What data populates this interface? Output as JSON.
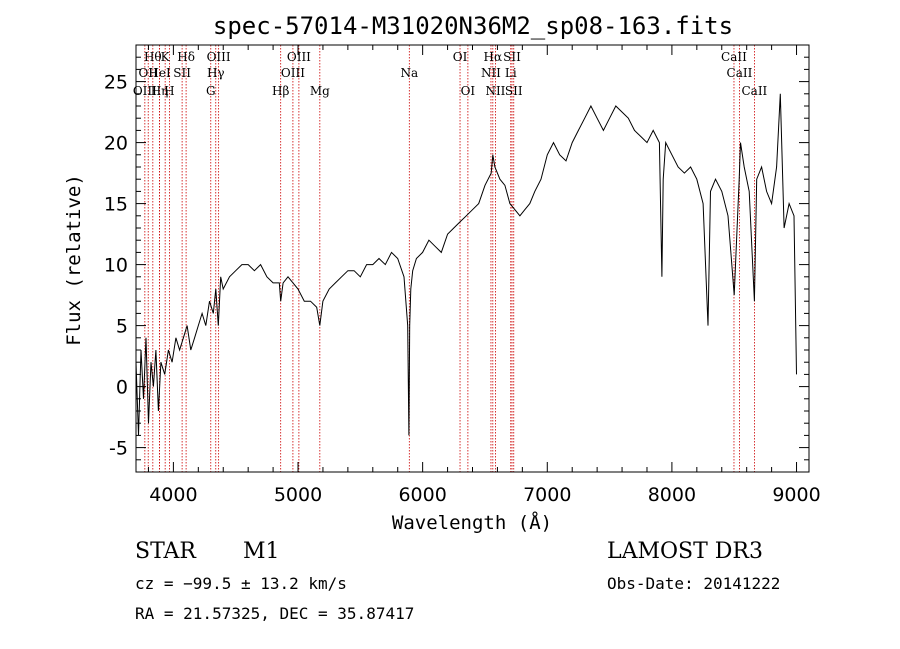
{
  "chart_data": {
    "type": "line",
    "title": "spec-57014-M31020N36M2_sp08-163.fits",
    "xlabel": "Wavelength (Å)",
    "ylabel": "Flux (relative)",
    "xlim": [
      3700,
      9100
    ],
    "ylim": [
      -7,
      28
    ],
    "xticks": [
      4000,
      5000,
      6000,
      7000,
      8000,
      9000
    ],
    "yticks": [
      -5,
      0,
      5,
      10,
      15,
      20,
      25
    ],
    "grid": false,
    "series": [
      {
        "x": [
          3700,
          3720,
          3740,
          3760,
          3780,
          3800,
          3820,
          3840,
          3860,
          3880,
          3900,
          3930,
          3960,
          3990,
          4020,
          4050,
          4080,
          4110,
          4140,
          4170,
          4200,
          4230,
          4260,
          4290,
          4320,
          4340,
          4360,
          4380,
          4400,
          4450,
          4500,
          4550,
          4600,
          4650,
          4700,
          4750,
          4800,
          4850,
          4861,
          4880,
          4920,
          4960,
          5000,
          5050,
          5100,
          5150,
          5175,
          5200,
          5250,
          5300,
          5350,
          5400,
          5450,
          5500,
          5550,
          5600,
          5650,
          5700,
          5750,
          5800,
          5850,
          5880,
          5890,
          5896,
          5905,
          5920,
          5950,
          6000,
          6050,
          6100,
          6150,
          6200,
          6250,
          6300,
          6350,
          6400,
          6450,
          6500,
          6550,
          6563,
          6580,
          6620,
          6660,
          6700,
          6740,
          6780,
          6820,
          6860,
          6900,
          6950,
          7000,
          7050,
          7100,
          7150,
          7200,
          7250,
          7300,
          7350,
          7400,
          7450,
          7500,
          7550,
          7600,
          7650,
          7700,
          7750,
          7800,
          7850,
          7900,
          7920,
          7930,
          7950,
          8000,
          8050,
          8100,
          8150,
          8200,
          8250,
          8290,
          8310,
          8350,
          8400,
          8450,
          8500,
          8540,
          8550,
          8580,
          8620,
          8662,
          8680,
          8720,
          8760,
          8800,
          8840,
          8870,
          8900,
          8940,
          8980,
          9000
        ],
        "y": [
          2,
          -4,
          3,
          -1,
          4,
          -3,
          2,
          0,
          3,
          -2,
          2,
          1,
          3,
          2,
          4,
          3,
          4,
          5,
          3,
          4,
          5,
          6,
          5,
          7,
          6,
          8,
          5,
          9,
          8,
          9,
          9.5,
          10,
          10,
          9.5,
          10,
          9,
          8.5,
          8.5,
          7,
          8.5,
          9,
          8.5,
          8,
          7,
          7,
          6.5,
          5,
          7,
          8,
          8.5,
          9,
          9.5,
          9.5,
          9,
          10,
          10,
          10.5,
          10,
          11,
          10.5,
          9,
          5,
          -4,
          5,
          8,
          9.5,
          10.5,
          11,
          12,
          11.5,
          11,
          12.5,
          13,
          13.5,
          14,
          14.5,
          15,
          16.5,
          17.5,
          19,
          18,
          17,
          16.5,
          15,
          14.5,
          14,
          14.5,
          15,
          16,
          17,
          19,
          20,
          19,
          18.5,
          20,
          21,
          22,
          23,
          22,
          21,
          22,
          23,
          22.5,
          22,
          21,
          20.5,
          20,
          21,
          20,
          9,
          17,
          20,
          19,
          18,
          17.5,
          18,
          17,
          15,
          5,
          16,
          17,
          16,
          14,
          7.5,
          17,
          20,
          18,
          16,
          7,
          17,
          18,
          16,
          15,
          18,
          24,
          13,
          15,
          14,
          1
        ]
      }
    ],
    "line_labels": [
      {
        "wavelength": 3771,
        "row": 2,
        "text": "OIII"
      },
      {
        "wavelength": 3798,
        "row": 1,
        "text": "OII"
      },
      {
        "wavelength": 3835,
        "row": 0,
        "text": "Hθ"
      },
      {
        "wavelength": 3889,
        "row": 1,
        "text": "HeI"
      },
      {
        "wavelength": 3889,
        "row": 2,
        "text": "Hη"
      },
      {
        "wavelength": 3934,
        "row": 0,
        "text": "K"
      },
      {
        "wavelength": 3968,
        "row": 2,
        "text": "H"
      },
      {
        "wavelength": 4070,
        "row": 1,
        "text": "SII"
      },
      {
        "wavelength": 4102,
        "row": 0,
        "text": "Hδ"
      },
      {
        "wavelength": 4300,
        "row": 2,
        "text": "G"
      },
      {
        "wavelength": 4340,
        "row": 1,
        "text": "Hγ"
      },
      {
        "wavelength": 4363,
        "row": 0,
        "text": "OIII"
      },
      {
        "wavelength": 4861,
        "row": 2,
        "text": "Hβ"
      },
      {
        "wavelength": 4959,
        "row": 1,
        "text": "OIII"
      },
      {
        "wavelength": 5007,
        "row": 0,
        "text": "OIII"
      },
      {
        "wavelength": 5175,
        "row": 2,
        "text": "Mg"
      },
      {
        "wavelength": 5893,
        "row": 1,
        "text": "Na"
      },
      {
        "wavelength": 6300,
        "row": 0,
        "text": "OI"
      },
      {
        "wavelength": 6363,
        "row": 2,
        "text": "OI"
      },
      {
        "wavelength": 6548,
        "row": 1,
        "text": "NII"
      },
      {
        "wavelength": 6563,
        "row": 0,
        "text": "Hα"
      },
      {
        "wavelength": 6584,
        "row": 2,
        "text": "NII"
      },
      {
        "wavelength": 6707,
        "row": 1,
        "text": "Li"
      },
      {
        "wavelength": 6717,
        "row": 0,
        "text": "SII"
      },
      {
        "wavelength": 6731,
        "row": 2,
        "text": "SII"
      },
      {
        "wavelength": 8498,
        "row": 0,
        "text": "CaII"
      },
      {
        "wavelength": 8542,
        "row": 1,
        "text": "CaII"
      },
      {
        "wavelength": 8662,
        "row": 2,
        "text": "CaII"
      }
    ],
    "line_color": "#000000",
    "marker_color": "#cc0000"
  },
  "footer": {
    "class_label": "STAR",
    "subclass": "M1",
    "redshift": "cz = −99.5 ± 13.2 km/s",
    "coords": "RA =  21.57325, DEC =  35.87417",
    "survey": "LAMOST DR3",
    "obs_date": "Obs-Date: 20141222"
  }
}
